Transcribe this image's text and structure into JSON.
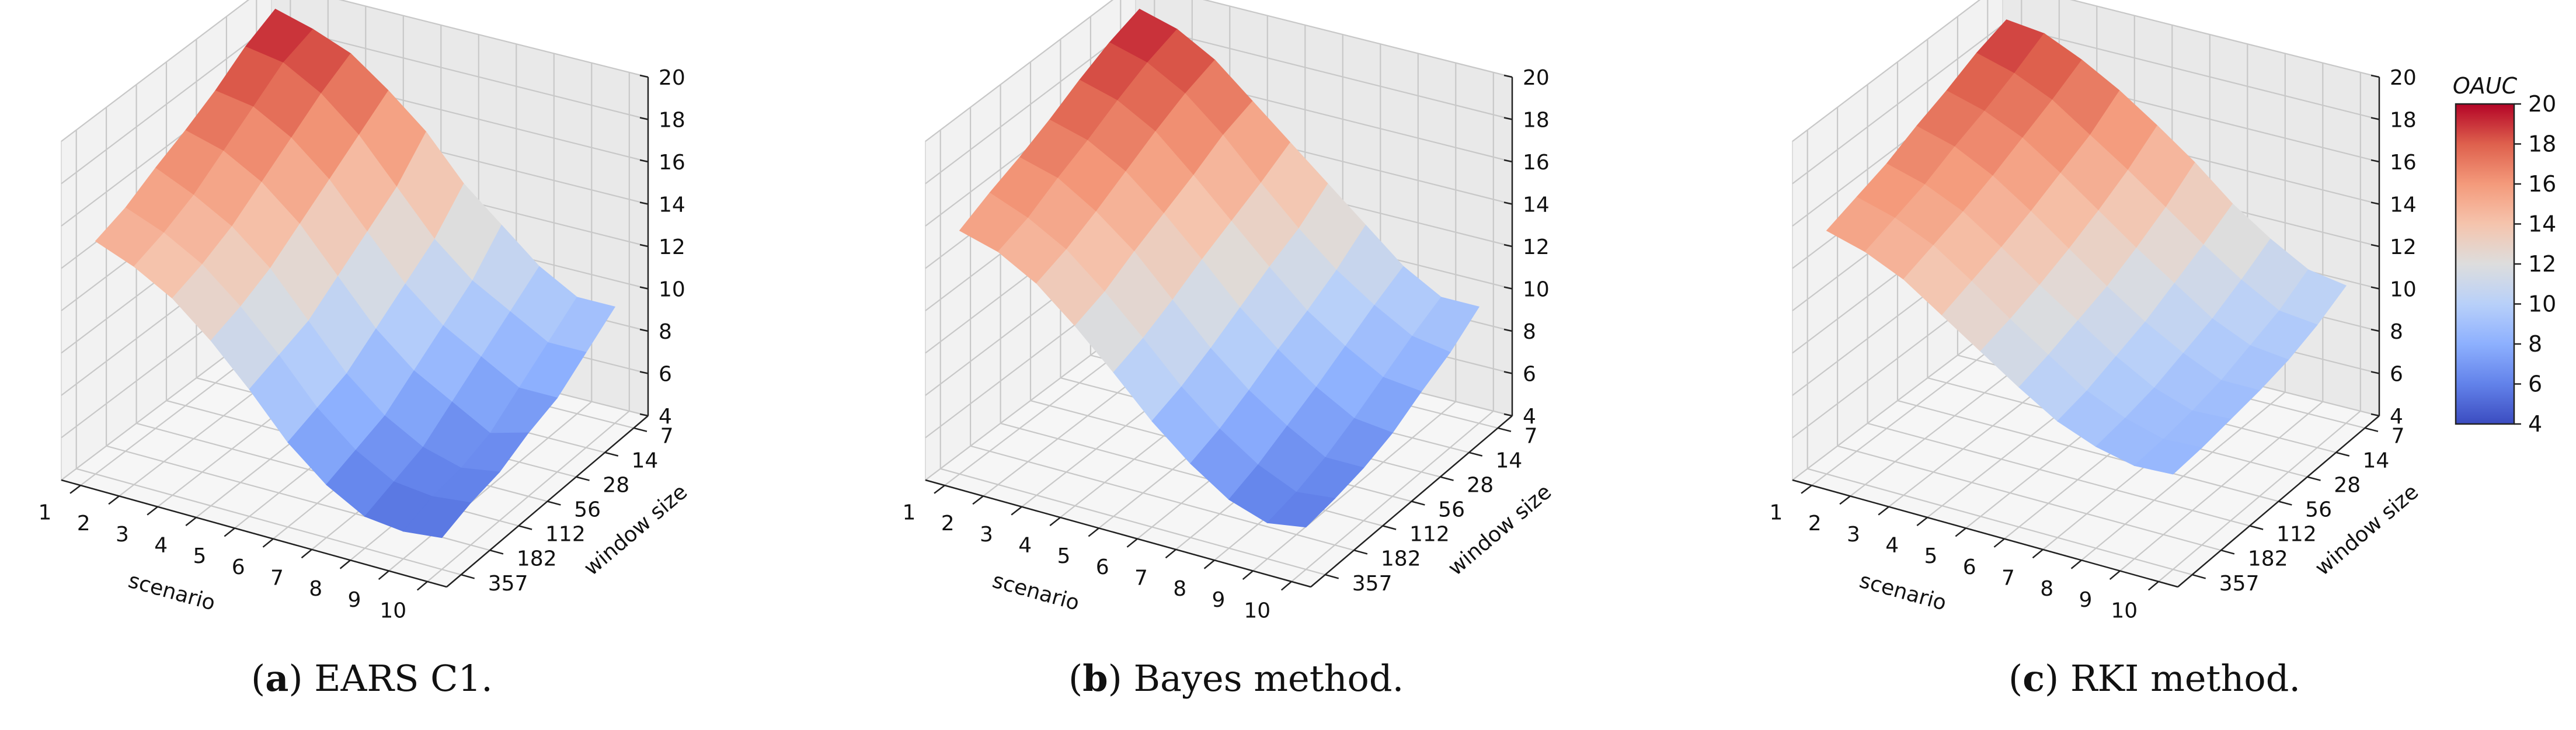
{
  "captions": [
    {
      "letter": "a",
      "text": ") EARS C1."
    },
    {
      "letter": "b",
      "text": ") Bayes method."
    },
    {
      "letter": "c",
      "text": ") RKI method."
    }
  ],
  "colorbar": {
    "title": "OAUC",
    "ticks": [
      4,
      6,
      8,
      10,
      12,
      14,
      16,
      18,
      20
    ],
    "colormap": "coolwarm",
    "vmin": 4,
    "vmax": 20
  },
  "chart_data": [
    {
      "type": "surface3d",
      "title": "",
      "xlabel": "scenario",
      "ylabel": "window size",
      "zlabel": "",
      "x_ticks": [
        "1",
        "2",
        "3",
        "4",
        "5",
        "6",
        "7",
        "8",
        "9",
        "10"
      ],
      "y_ticks": [
        "7",
        "14",
        "28",
        "56",
        "112",
        "182",
        "357"
      ],
      "z_ticks": [
        4,
        6,
        8,
        10,
        12,
        14,
        16,
        18,
        20
      ],
      "zlim": [
        4,
        20
      ],
      "z": [
        [
          19.5,
          19.0,
          18.3,
          17.0,
          15.5,
          13.5,
          12.0,
          10.5,
          9.5,
          9.5
        ],
        [
          18.8,
          18.5,
          17.5,
          16.0,
          14.0,
          12.0,
          10.5,
          9.5,
          8.5,
          8.5
        ],
        [
          17.8,
          17.5,
          16.5,
          15.0,
          13.0,
          11.0,
          9.5,
          8.5,
          7.5,
          7.5
        ],
        [
          17.0,
          16.5,
          15.5,
          14.0,
          12.0,
          10.0,
          8.5,
          7.5,
          6.5,
          7.0
        ],
        [
          16.3,
          15.5,
          14.5,
          13.0,
          11.0,
          9.0,
          7.5,
          6.5,
          6.0,
          6.3
        ],
        [
          15.5,
          14.8,
          13.8,
          12.3,
          10.5,
          8.5,
          7.0,
          6.0,
          5.8,
          6.0
        ],
        [
          15.0,
          14.3,
          13.3,
          11.8,
          10.0,
          8.0,
          6.5,
          5.5,
          5.3,
          5.5
        ]
      ]
    },
    {
      "type": "surface3d",
      "title": "",
      "xlabel": "scenario",
      "ylabel": "window size",
      "zlabel": "",
      "x_ticks": [
        "1",
        "2",
        "3",
        "4",
        "5",
        "6",
        "7",
        "8",
        "9",
        "10"
      ],
      "y_ticks": [
        "7",
        "14",
        "28",
        "56",
        "112",
        "182",
        "357"
      ],
      "z_ticks": [
        4,
        6,
        8,
        10,
        12,
        14,
        16,
        18,
        20
      ],
      "zlim": [
        4,
        20
      ],
      "z": [
        [
          19.5,
          19.0,
          18.0,
          16.5,
          15.0,
          13.5,
          12.0,
          10.5,
          9.5,
          9.5
        ],
        [
          19.0,
          18.5,
          17.5,
          16.0,
          14.2,
          12.5,
          11.0,
          9.8,
          8.8,
          8.5
        ],
        [
          18.3,
          17.8,
          16.8,
          15.2,
          13.5,
          11.8,
          10.2,
          9.0,
          8.0,
          7.8
        ],
        [
          17.5,
          17.0,
          16.0,
          14.5,
          12.8,
          11.0,
          9.5,
          8.2,
          7.2,
          7.0
        ],
        [
          16.8,
          16.3,
          15.2,
          13.8,
          12.0,
          10.2,
          8.7,
          7.5,
          6.5,
          6.5
        ],
        [
          16.2,
          15.5,
          14.5,
          13.0,
          11.3,
          9.5,
          8.0,
          6.8,
          6.0,
          6.2
        ],
        [
          15.5,
          15.0,
          14.0,
          12.5,
          10.8,
          9.0,
          7.5,
          6.3,
          5.7,
          6.0
        ]
      ]
    },
    {
      "type": "surface3d",
      "title": "",
      "xlabel": "scenario",
      "ylabel": "window size",
      "zlabel": "",
      "x_ticks": [
        "1",
        "2",
        "3",
        "4",
        "5",
        "6",
        "7",
        "8",
        "9",
        "10"
      ],
      "y_ticks": [
        "7",
        "14",
        "28",
        "56",
        "112",
        "182",
        "357"
      ],
      "z_ticks": [
        4,
        6,
        8,
        10,
        12,
        14,
        16,
        18,
        20
      ],
      "zlim": [
        4,
        20
      ],
      "z": [
        [
          19.0,
          18.8,
          18.0,
          17.0,
          15.8,
          14.5,
          13.0,
          11.8,
          10.8,
          10.5
        ],
        [
          18.5,
          18.0,
          17.2,
          16.0,
          14.8,
          13.5,
          12.2,
          11.0,
          10.0,
          9.8
        ],
        [
          17.8,
          17.3,
          16.5,
          15.3,
          14.0,
          12.7,
          11.5,
          10.3,
          9.5,
          9.3
        ],
        [
          17.2,
          16.7,
          15.8,
          14.6,
          13.3,
          12.0,
          10.8,
          9.8,
          9.0,
          9.0
        ],
        [
          16.5,
          16.0,
          15.2,
          14.0,
          12.7,
          11.5,
          10.3,
          9.3,
          8.7,
          8.8
        ],
        [
          16.0,
          15.5,
          14.7,
          13.5,
          12.2,
          11.0,
          9.8,
          9.0,
          8.5,
          8.6
        ],
        [
          15.5,
          15.0,
          14.2,
          13.0,
          11.8,
          10.6,
          9.5,
          8.8,
          8.4,
          8.5
        ]
      ]
    }
  ]
}
